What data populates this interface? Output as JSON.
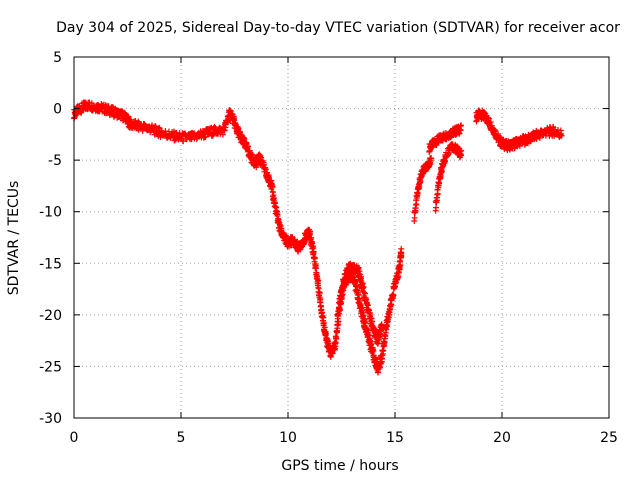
{
  "chart_data": {
    "type": "scatter",
    "title": "Day 304 of 2025, Sidereal Day-to-day VTEC variation (SDTVAR) for receiver acor",
    "xlabel": "GPS time / hours",
    "ylabel": "SDTVAR / TECUs",
    "xlim": [
      0,
      25
    ],
    "ylim": [
      -30,
      5
    ],
    "xticks": [
      0,
      5,
      10,
      15,
      20,
      25
    ],
    "yticks": [
      5,
      0,
      -5,
      -10,
      -15,
      -20,
      -25,
      -30
    ],
    "grid": true,
    "series": [
      {
        "name": "SDTVAR",
        "color": "#ff0000",
        "marker": "plus",
        "band_width": 0.9,
        "x": [
          0.0,
          0.3,
          0.6,
          1.0,
          1.4,
          1.8,
          2.2,
          2.5,
          2.6,
          3.0,
          3.5,
          4.0,
          4.5,
          5.0,
          5.5,
          6.0,
          6.5,
          7.0,
          7.3,
          7.6,
          7.8,
          8.0,
          8.3,
          8.5,
          8.7,
          9.0,
          9.2,
          9.4,
          9.6,
          9.8,
          10.0,
          10.2,
          10.5,
          10.8,
          11.0,
          11.2,
          11.4,
          11.6,
          11.8,
          12.0,
          12.2,
          12.4,
          12.6,
          12.8,
          13.0,
          13.2,
          13.4,
          13.6,
          13.8,
          14.0,
          14.2,
          14.4,
          14.6,
          14.8,
          15.0,
          15.2,
          15.3
        ],
        "y": [
          -0.5,
          0.0,
          0.3,
          0.2,
          0.0,
          -0.3,
          -0.6,
          -1.0,
          -1.5,
          -1.7,
          -1.9,
          -2.3,
          -2.6,
          -2.8,
          -2.8,
          -2.5,
          -2.2,
          -2.1,
          -0.3,
          -2.0,
          -2.8,
          -3.5,
          -4.8,
          -5.3,
          -4.7,
          -6.5,
          -7.2,
          -9.5,
          -11.5,
          -12.5,
          -13.0,
          -12.8,
          -13.5,
          -12.5,
          -12.0,
          -14.0,
          -17.0,
          -20.0,
          -22.5,
          -23.8,
          -23.0,
          -19.5,
          -17.0,
          -16.5,
          -16.0,
          -17.5,
          -19.5,
          -21.0,
          -22.5,
          -24.0,
          -25.3,
          -24.0,
          -21.0,
          -19.0,
          -17.0,
          -15.5,
          -13.8
        ]
      },
      {
        "name": "SDTVAR",
        "color": "#ff0000",
        "marker": "plus",
        "band_width": 0.9,
        "x": [
          12.3,
          12.5,
          12.8,
          13.0,
          13.3,
          13.5,
          13.8,
          14.0,
          14.2,
          14.4
        ],
        "y": [
          -20.5,
          -17.5,
          -15.5,
          -15.2,
          -15.8,
          -17.5,
          -20.0,
          -21.5,
          -22.5,
          -21.0
        ]
      },
      {
        "name": "SDTVAR",
        "color": "#ff0000",
        "marker": "plus",
        "band_width": 0.8,
        "x": [
          15.9,
          16.1,
          16.3,
          16.5,
          16.7
        ],
        "y": [
          -10.5,
          -7.5,
          -6.0,
          -5.5,
          -5.0
        ]
      },
      {
        "name": "SDTVAR",
        "color": "#ff0000",
        "marker": "plus",
        "band_width": 0.8,
        "x": [
          16.6,
          16.9,
          17.2,
          17.5,
          17.8,
          18.1
        ],
        "y": [
          -3.8,
          -3.2,
          -2.8,
          -2.5,
          -2.2,
          -2.0
        ]
      },
      {
        "name": "SDTVAR",
        "color": "#ff0000",
        "marker": "plus",
        "band_width": 0.8,
        "x": [
          16.9,
          17.1,
          17.3,
          17.6,
          17.9,
          18.1
        ],
        "y": [
          -9.5,
          -6.5,
          -5.0,
          -3.5,
          -4.0,
          -4.5
        ]
      },
      {
        "name": "SDTVAR",
        "color": "#ff0000",
        "marker": "plus",
        "band_width": 0.9,
        "x": [
          18.8,
          19.0,
          19.3,
          19.6,
          19.9,
          20.2,
          20.5,
          20.8,
          21.2,
          21.6,
          22.0,
          22.4,
          22.8
        ],
        "y": [
          -0.8,
          -0.5,
          -1.0,
          -2.0,
          -3.2,
          -3.6,
          -3.5,
          -3.2,
          -3.0,
          -2.6,
          -2.3,
          -2.2,
          -2.5
        ]
      }
    ]
  }
}
